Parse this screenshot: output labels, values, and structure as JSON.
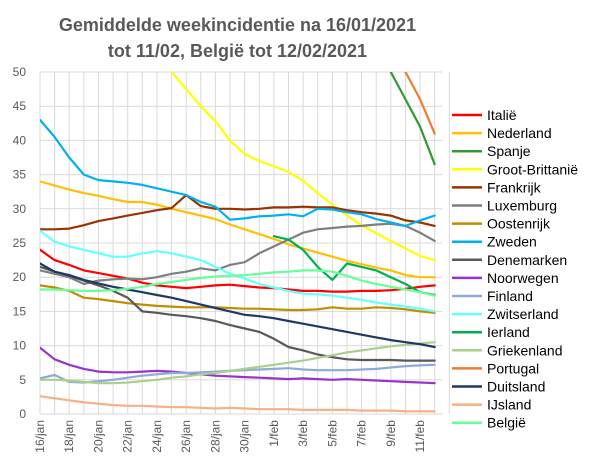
{
  "chart_data": {
    "type": "line",
    "title_line1": "Gemiddelde weekincidentie  na 16/01/2021",
    "title_line2": "tot 11/02, België tot 12/02/2021",
    "ylim": [
      0,
      50
    ],
    "yticks": [
      0,
      5,
      10,
      15,
      20,
      25,
      30,
      35,
      40,
      45,
      50
    ],
    "xticks": [
      "16/jan",
      "18/jan",
      "20/jan",
      "22/jan",
      "24/jan",
      "26/jan",
      "28/jan",
      "30/jan",
      "1/feb",
      "3/feb",
      "5/feb",
      "7/feb",
      "9/feb",
      "11/feb"
    ],
    "grid": true,
    "legend_position": "right",
    "x_days": [
      0,
      1,
      2,
      3,
      4,
      5,
      6,
      7,
      8,
      9,
      10,
      11,
      12,
      13,
      14,
      15,
      16,
      17,
      18,
      19,
      20,
      21,
      22,
      23,
      24,
      25,
      26,
      27
    ],
    "series": [
      {
        "name": "Italië",
        "color": "#ff0000",
        "values": [
          24,
          22.5,
          21.8,
          21,
          20.6,
          20.2,
          19.8,
          19.2,
          18.8,
          18.6,
          18.4,
          18.6,
          18.8,
          18.9,
          18.7,
          18.5,
          18.4,
          18.2,
          18.0,
          18.0,
          17.9,
          17.9,
          18.0,
          18.0,
          18.1,
          18.3,
          18.6,
          18.8
        ]
      },
      {
        "name": "Nederland",
        "color": "#ffc000",
        "values": [
          34,
          33.4,
          32.8,
          32.3,
          31.9,
          31.4,
          31.0,
          31.0,
          30.6,
          30.0,
          29.5,
          29.0,
          28.5,
          27.7,
          27.0,
          26.3,
          25.6,
          24.8,
          24.2,
          23.6,
          23.0,
          22.4,
          21.9,
          21.4,
          21.0,
          20.3,
          20.0,
          20.0
        ]
      },
      {
        "name": "Spanje",
        "color": "#339933",
        "values": [
          null,
          null,
          null,
          null,
          null,
          null,
          null,
          null,
          null,
          null,
          null,
          null,
          null,
          null,
          null,
          null,
          null,
          null,
          null,
          null,
          null,
          null,
          null,
          null,
          50,
          46,
          42,
          36.5
        ]
      },
      {
        "name": "Groot-Brittanië",
        "color": "#ffff00",
        "values": [
          null,
          null,
          null,
          null,
          null,
          null,
          null,
          null,
          null,
          50,
          47.5,
          45.0,
          42.8,
          40.0,
          38.0,
          37.0,
          36.2,
          35.4,
          34.1,
          32.3,
          30.6,
          29.0,
          27.6,
          26.4,
          25.3,
          24.2,
          23.1,
          22.5
        ]
      },
      {
        "name": "Frankrijk",
        "color": "#993300",
        "values": [
          27,
          27.0,
          27.1,
          27.6,
          28.2,
          28.6,
          29.0,
          29.4,
          29.8,
          30.1,
          32.0,
          30.4,
          30.0,
          30.0,
          29.9,
          30.0,
          30.2,
          30.2,
          30.3,
          30.2,
          30.2,
          29.8,
          29.5,
          29.3,
          29.0,
          28.3,
          28.0,
          27.5
        ]
      },
      {
        "name": "Luxemburg",
        "color": "#7f7f7f",
        "values": [
          21,
          20.5,
          20.0,
          19.0,
          19.5,
          19.7,
          19.8,
          19.7,
          20.0,
          20.5,
          20.8,
          21.3,
          21.0,
          21.8,
          22.2,
          23.5,
          24.5,
          25.5,
          26.5,
          27.0,
          27.2,
          27.4,
          27.5,
          27.7,
          27.8,
          27.5,
          26.5,
          25.3
        ]
      },
      {
        "name": "Oostenrijk",
        "color": "#bf8f00",
        "values": [
          18.8,
          18.5,
          18.0,
          17.0,
          16.8,
          16.5,
          16.2,
          16.0,
          15.8,
          15.7,
          15.6,
          15.6,
          15.6,
          15.5,
          15.4,
          15.4,
          15.3,
          15.2,
          15.2,
          15.3,
          15.6,
          15.4,
          15.4,
          15.6,
          15.5,
          15.3,
          15.0,
          14.8
        ]
      },
      {
        "name": "Zweden",
        "color": "#00b0f0",
        "values": [
          43,
          40.5,
          37.5,
          35.0,
          34.2,
          34.0,
          33.8,
          33.5,
          33.0,
          32.5,
          32.0,
          31.0,
          30.3,
          28.4,
          28.6,
          28.9,
          29.0,
          29.2,
          28.9,
          30.0,
          29.9,
          29.5,
          29.2,
          28.5,
          28.0,
          27.5,
          28.3,
          29.0
        ]
      },
      {
        "name": "Denemarken",
        "color": "#595959",
        "values": [
          21.5,
          20.8,
          20.2,
          19.5,
          18.8,
          18.0,
          17.0,
          15.0,
          14.8,
          14.5,
          14.3,
          14.0,
          13.6,
          13.0,
          12.5,
          12.0,
          11.0,
          9.8,
          9.3,
          8.7,
          8.3,
          8.0,
          7.9,
          7.9,
          7.9,
          7.8,
          7.8,
          7.8
        ]
      },
      {
        "name": "Noorwegen",
        "color": "#9933cc",
        "values": [
          9.7,
          8.0,
          7.2,
          6.6,
          6.2,
          6.1,
          6.1,
          6.2,
          6.3,
          6.2,
          6.0,
          5.8,
          5.6,
          5.5,
          5.4,
          5.3,
          5.2,
          5.1,
          5.2,
          5.1,
          5.0,
          5.1,
          5.0,
          4.9,
          4.8,
          4.7,
          4.6,
          4.5
        ]
      },
      {
        "name": "Finland",
        "color": "#8ea9db",
        "values": [
          5.2,
          5.7,
          4.7,
          4.6,
          4.8,
          5.0,
          5.3,
          5.6,
          5.8,
          6.0,
          6.0,
          6.1,
          6.2,
          6.3,
          6.4,
          6.5,
          6.6,
          6.7,
          6.5,
          6.4,
          6.4,
          6.4,
          6.5,
          6.6,
          6.8,
          7.0,
          7.1,
          7.2
        ]
      },
      {
        "name": "Zwitserland",
        "color": "#66ffff",
        "values": [
          26.8,
          25.2,
          24.5,
          24.0,
          23.5,
          23.0,
          23.0,
          23.5,
          23.8,
          23.5,
          23.0,
          22.5,
          21.5,
          20.5,
          19.8,
          19.0,
          18.5,
          18.0,
          17.6,
          17.5,
          17.3,
          17.0,
          16.7,
          16.3,
          16.0,
          15.7,
          15.4,
          15.0
        ]
      },
      {
        "name": "Ierland",
        "color": "#00b050",
        "values": [
          null,
          null,
          null,
          null,
          null,
          null,
          null,
          null,
          null,
          null,
          null,
          null,
          null,
          null,
          null,
          null,
          26.0,
          25.5,
          24.0,
          21.5,
          19.6,
          22.0,
          21.5,
          21.0,
          20.0,
          19.0,
          17.8,
          17.4
        ]
      },
      {
        "name": "Griekenland",
        "color": "#a9d08e",
        "values": [
          5.0,
          5.0,
          4.9,
          4.7,
          4.5,
          4.5,
          4.6,
          4.8,
          5.0,
          5.3,
          5.5,
          5.8,
          6.0,
          6.3,
          6.6,
          6.9,
          7.2,
          7.5,
          7.8,
          8.2,
          8.6,
          9.0,
          9.3,
          9.6,
          9.9,
          10.1,
          10.3,
          10.5
        ]
      },
      {
        "name": "Portugal",
        "color": "#ed7d31",
        "values": [
          null,
          null,
          null,
          null,
          null,
          null,
          null,
          null,
          null,
          null,
          null,
          null,
          null,
          null,
          null,
          null,
          null,
          null,
          null,
          null,
          null,
          null,
          null,
          null,
          null,
          50,
          46,
          41
        ]
      },
      {
        "name": "Duitsland",
        "color": "#1f3864",
        "values": [
          22,
          20.8,
          20.3,
          19.6,
          19.1,
          18.6,
          18.2,
          17.8,
          17.4,
          17.0,
          16.5,
          16.0,
          15.5,
          15.0,
          14.5,
          14.3,
          14.0,
          13.6,
          13.2,
          12.8,
          12.4,
          12.0,
          11.6,
          11.2,
          10.8,
          10.5,
          10.2,
          9.8
        ]
      },
      {
        "name": "IJsland",
        "color": "#f4b183",
        "values": [
          2.6,
          2.3,
          2.0,
          1.7,
          1.5,
          1.3,
          1.2,
          1.2,
          1.1,
          1.0,
          1.0,
          0.9,
          0.8,
          0.9,
          0.8,
          0.7,
          0.7,
          0.7,
          0.6,
          0.6,
          0.6,
          0.6,
          0.5,
          0.5,
          0.5,
          0.4,
          0.4,
          0.4
        ]
      },
      {
        "name": "België",
        "color": "#66ff99",
        "values": [
          18.2,
          18.2,
          18.1,
          18.0,
          18.0,
          18.1,
          18.3,
          18.6,
          19.0,
          19.3,
          19.6,
          19.9,
          20.1,
          20.2,
          20.3,
          20.5,
          20.7,
          20.8,
          21.0,
          21.0,
          20.8,
          20.2,
          19.5,
          19.0,
          18.6,
          18.2,
          17.8,
          17.3
        ]
      }
    ]
  }
}
